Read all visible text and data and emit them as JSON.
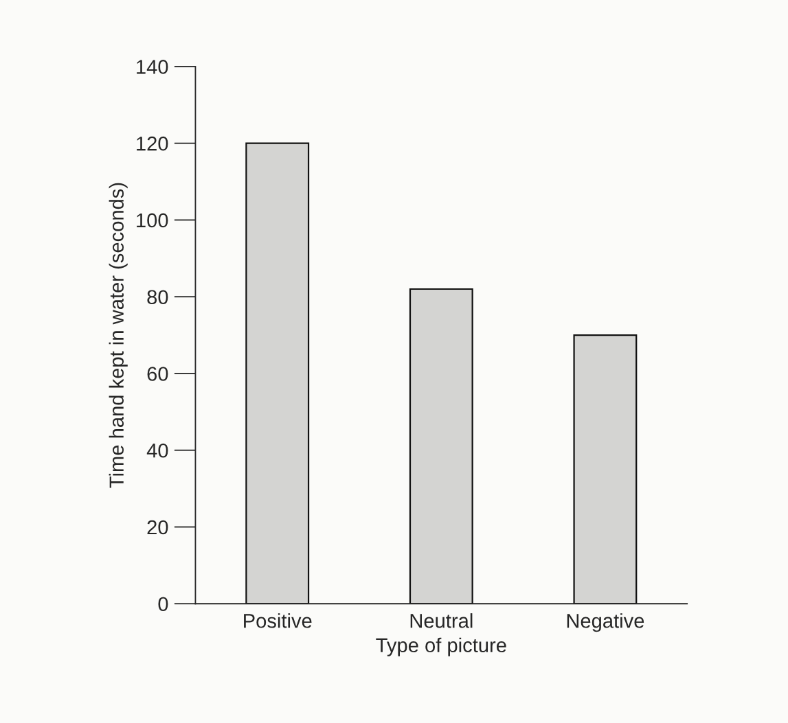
{
  "chart_data": {
    "type": "bar",
    "xlabel": "Type of picture",
    "ylabel": "Time hand kept in water (seconds)",
    "categories": [
      "Positive",
      "Neutral",
      "Negative"
    ],
    "values": [
      120,
      82,
      70
    ],
    "color": "#d4d4d2",
    "ylim": [
      0,
      140
    ],
    "yticks": [
      0,
      20,
      40,
      60,
      80,
      100,
      120,
      140
    ],
    "grid": false
  }
}
